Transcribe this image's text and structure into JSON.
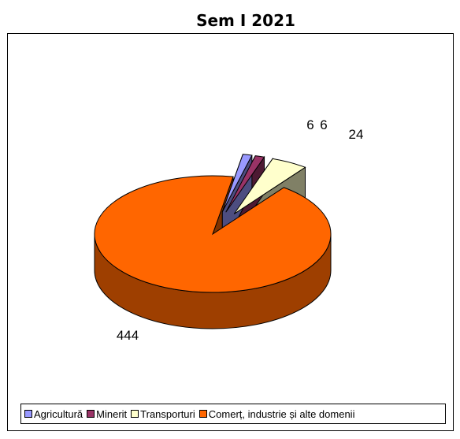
{
  "chart_data": {
    "type": "pie",
    "title": "Sem I 2021",
    "categories": [
      "Agricultură",
      "Minerit",
      "Transporturi",
      "Comerț, industrie și alte domenii"
    ],
    "values": [
      6,
      6,
      24,
      444
    ],
    "data_labels": [
      "6",
      "6",
      "24",
      "444"
    ],
    "colors": [
      "#9999ff",
      "#993366",
      "#ffffcc",
      "#ff6600"
    ],
    "legend_position": "bottom",
    "three_d": true,
    "exploded": true
  }
}
